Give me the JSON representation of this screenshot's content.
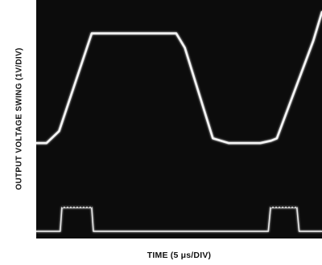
{
  "chart_data": {
    "type": "line",
    "title": "",
    "xlabel": "TIME (5 μs/DIV)",
    "ylabel": "OUTPUT VOLTAGE SWING (1V/DIV)",
    "xlim": [
      0,
      50
    ],
    "ylim": [
      -4,
      6
    ],
    "grid": false,
    "x_unit": "μs",
    "y_unit": "V",
    "series": [
      {
        "x": [
          0,
          1.8,
          4.0,
          9.7,
          12.7,
          24.5,
          26.0,
          30.9,
          33.7,
          39.2,
          41.1,
          42.1,
          48.5,
          50.0
        ],
        "y": [
          0.0,
          0.0,
          0.5,
          4.6,
          4.6,
          4.6,
          4.0,
          0.2,
          0.0,
          0.0,
          0.1,
          0.2,
          4.3,
          5.5
        ]
      },
      {
        "x": [
          0,
          4.2,
          4.5,
          9.7,
          10.0,
          40.6,
          41.0,
          45.6,
          46.0,
          50.0
        ],
        "y": [
          -3.7,
          -3.7,
          -2.7,
          -2.7,
          -3.7,
          -3.7,
          -2.7,
          -2.7,
          -3.7,
          -3.7
        ]
      }
    ]
  }
}
